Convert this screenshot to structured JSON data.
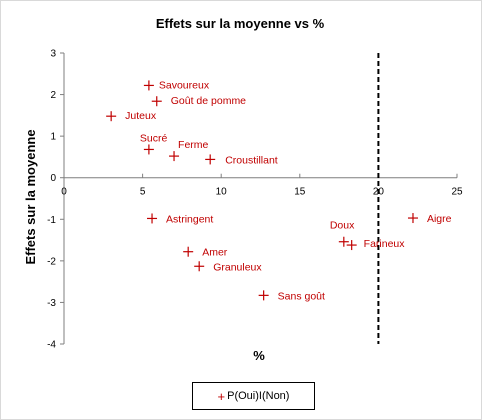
{
  "chart_data": {
    "type": "scatter",
    "title": "Effets sur la moyenne vs %",
    "xlabel": "%",
    "ylabel": "Effets sur la moyenne",
    "xlim": [
      0,
      25
    ],
    "ylim": [
      -4,
      3
    ],
    "x_ticks": [
      0,
      5,
      10,
      15,
      20,
      25
    ],
    "y_ticks": [
      3,
      2,
      1,
      0,
      -1,
      -2,
      -3,
      -4
    ],
    "grid": false,
    "legend_position": "bottom",
    "reference_line_x": 20,
    "series": [
      {
        "name": "P(Oui)I(Non)",
        "color": "#c00000",
        "marker": "plus",
        "points": [
          {
            "label": "Savoureux",
            "x": 5.4,
            "y": 2.22
          },
          {
            "label": "Goût de pomme",
            "x": 5.9,
            "y": 1.84
          },
          {
            "label": "Juteux",
            "x": 3.0,
            "y": 1.48
          },
          {
            "label": "Sucré",
            "x": 5.4,
            "y": 0.68
          },
          {
            "label": "Ferme",
            "x": 7.0,
            "y": 0.52
          },
          {
            "label": "Croustillant",
            "x": 9.3,
            "y": 0.44
          },
          {
            "label": "Astringent",
            "x": 5.6,
            "y": -0.98
          },
          {
            "label": "Amer",
            "x": 7.9,
            "y": -1.78
          },
          {
            "label": "Granuleux",
            "x": 8.6,
            "y": -2.13
          },
          {
            "label": "Sans goût",
            "x": 12.7,
            "y": -2.83
          },
          {
            "label": "Doux",
            "x": 17.8,
            "y": -1.54
          },
          {
            "label": "Farineux",
            "x": 18.3,
            "y": -1.62
          },
          {
            "label": "Aigre",
            "x": 22.2,
            "y": -0.97
          }
        ]
      }
    ]
  }
}
